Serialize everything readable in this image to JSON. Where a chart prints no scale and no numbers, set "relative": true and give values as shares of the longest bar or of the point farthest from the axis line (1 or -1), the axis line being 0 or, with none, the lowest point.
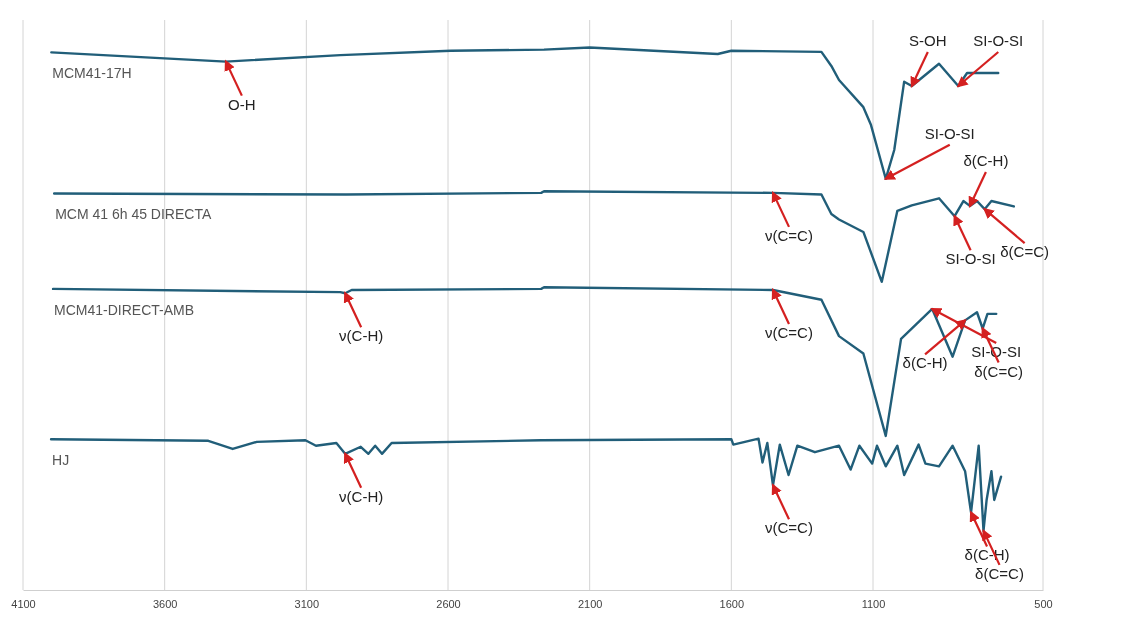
{
  "chart_data": {
    "type": "line",
    "relative": true,
    "xlim": [
      4100,
      500
    ],
    "xticks": [
      4100,
      3600,
      3100,
      2600,
      2100,
      1600,
      1100,
      500
    ],
    "grid": "x",
    "legend": false,
    "series": [
      {
        "name": "MCM41-17H",
        "color": "#215e79",
        "x": [
          4000,
          3384,
          2980,
          2590,
          2261,
          2100,
          1648,
          1600,
          1282,
          1247,
          1220,
          1134,
          1107,
          1055,
          1025,
          990,
          963,
          867,
          799,
          768,
          658
        ],
        "values": [
          0.991,
          0.974,
          0.986,
          0.994,
          0.996,
          1,
          0.988,
          0.994,
          0.992,
          0.966,
          0.94,
          0.89,
          0.857,
          0.758,
          0.811,
          0.937,
          0.929,
          0.97,
          0.929,
          0.953,
          0.953
        ]
      },
      {
        "name": "MCM 41 6h 45 DIRECTA",
        "color": "#215e79",
        "x": [
          3990,
          2960,
          2271,
          2261,
          1453,
          1282,
          1247,
          1220,
          1134,
          1069,
          1014,
          963,
          867,
          812,
          781,
          758,
          733,
          706,
          682,
          603
        ],
        "values": [
          0.731,
          0.729,
          0.732,
          0.735,
          0.732,
          0.729,
          0.693,
          0.683,
          0.66,
          0.568,
          0.699,
          0.709,
          0.722,
          0.689,
          0.717,
          0.708,
          0.717,
          0.702,
          0.717,
          0.707
        ]
      },
      {
        "name": "MCM41-DIRECT-AMB",
        "color": "#215e79",
        "x": [
          3994,
          2980,
          2963,
          2940,
          2271,
          2261,
          1453,
          1282,
          1220,
          1134,
          1055,
          1001,
          891,
          819,
          775,
          733,
          713,
          696,
          665
        ],
        "values": [
          0.555,
          0.549,
          0.547,
          0.553,
          0.555,
          0.558,
          0.553,
          0.535,
          0.468,
          0.436,
          0.284,
          0.463,
          0.518,
          0.43,
          0.497,
          0.512,
          0.482,
          0.509,
          0.509
        ]
      },
      {
        "name": "HJ",
        "color": "#215e79",
        "x": [
          4001,
          3446,
          3360,
          3275,
          3103,
          3066,
          2994,
          2963,
          2908,
          2881,
          2857,
          2833,
          2799,
          2271,
          1600,
          1593,
          1504,
          1490,
          1473,
          1453,
          1429,
          1398,
          1367,
          1305,
          1220,
          1179,
          1148,
          1103,
          1086,
          1055,
          1014,
          990,
          939,
          915,
          867,
          819,
          775,
          754,
          727,
          710,
          699,
          682,
          672,
          648
        ],
        "values": [
          0.278,
          0.275,
          0.26,
          0.273,
          0.276,
          0.266,
          0.271,
          0.251,
          0.264,
          0.251,
          0.266,
          0.251,
          0.271,
          0.276,
          0.278,
          0.268,
          0.279,
          0.235,
          0.271,
          0.193,
          0.268,
          0.212,
          0.266,
          0.254,
          0.266,
          0.222,
          0.266,
          0.233,
          0.266,
          0.228,
          0.266,
          0.212,
          0.268,
          0.233,
          0.228,
          0.266,
          0.219,
          0.143,
          0.266,
          0.109,
          0.166,
          0.219,
          0.166,
          0.209
        ]
      }
    ],
    "annotations": [
      {
        "text": "O-H",
        "x": 3384,
        "y": 0.974
      },
      {
        "text": "SI-O-SI",
        "x": 1055,
        "y": 0.758
      },
      {
        "text": "S-OH",
        "x": 963,
        "y": 0.929
      },
      {
        "text": "SI-O-SI",
        "x": 799,
        "y": 0.929
      },
      {
        "text": "ν(C=C)",
        "x": 1453,
        "y": 0.732
      },
      {
        "text": "SI-O-SI",
        "x": 812,
        "y": 0.689
      },
      {
        "text": "δ(C-H)",
        "x": 758,
        "y": 0.708
      },
      {
        "text": "δ(C=C)",
        "x": 706,
        "y": 0.702
      },
      {
        "text": "ν(C-H)",
        "x": 2963,
        "y": 0.547
      },
      {
        "text": "ν(C=C)",
        "x": 1453,
        "y": 0.553
      },
      {
        "text": "SI-O-SI",
        "x": 891,
        "y": 0.518
      },
      {
        "text": "δ(C-H)",
        "x": 775,
        "y": 0.497
      },
      {
        "text": "δ(C=C)",
        "x": 713,
        "y": 0.482
      },
      {
        "text": "ν(C-H)",
        "x": 2963,
        "y": 0.251
      },
      {
        "text": "ν(C=C)",
        "x": 1453,
        "y": 0.193
      },
      {
        "text": "δ(C-H)",
        "x": 754,
        "y": 0.143
      },
      {
        "text": "δ(C=C)",
        "x": 710,
        "y": 0.109
      }
    ]
  }
}
